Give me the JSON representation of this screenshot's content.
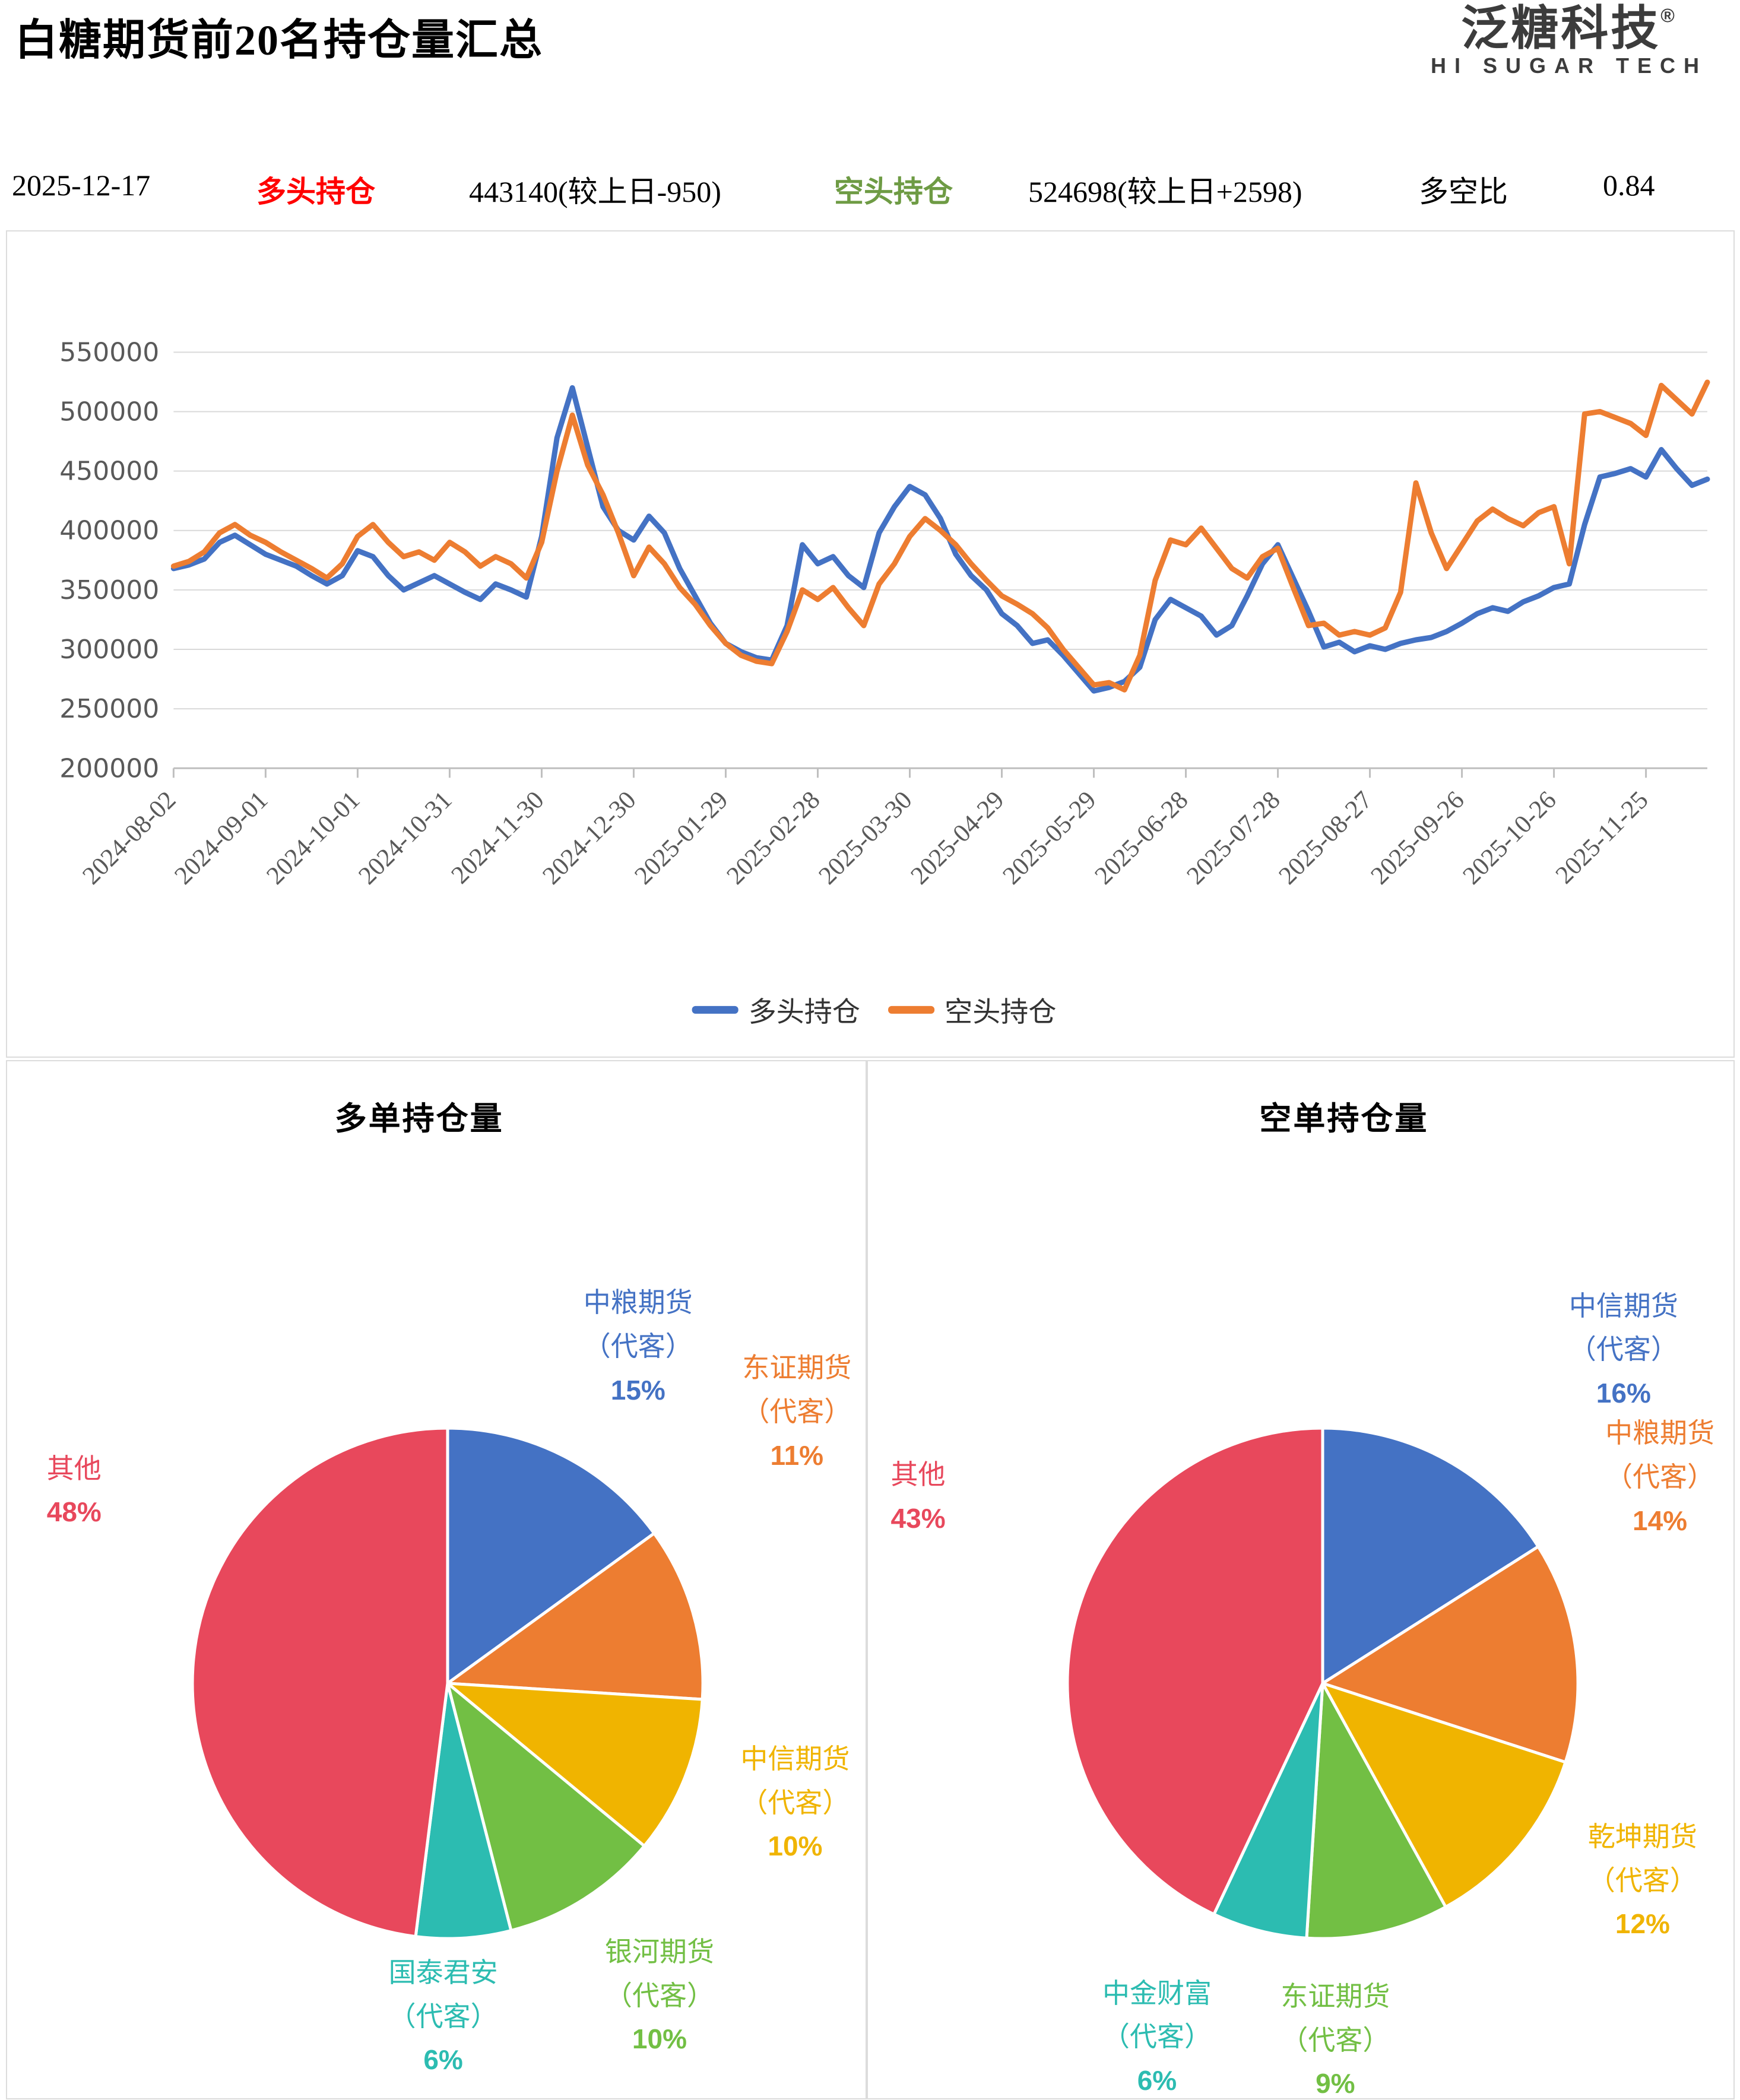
{
  "header": {
    "title": "白糖期货前20名持仓量汇总",
    "logo": {
      "name": "泛糖科技",
      "reg_mark": "®",
      "subtitle": "HI SUGAR TECH"
    }
  },
  "summary_bar": {
    "date": "2025-12-17",
    "long_label": "多头持仓",
    "long_label_color": "#FF0000",
    "long_value": "443140(较上日-950)",
    "short_label": "空头持仓",
    "short_label_color": "#6E9B44",
    "short_value": "524698(较上日+2598)",
    "ratio_label": "多空比",
    "ratio_value": "0.84"
  },
  "chart_data": [
    {
      "type": "line",
      "title": "",
      "ylim": [
        200000,
        550000
      ],
      "y_ticks": [
        200000,
        250000,
        300000,
        350000,
        400000,
        450000,
        500000,
        550000
      ],
      "grid": true,
      "legend_position": "bottom",
      "x_label_interval_days": 30,
      "span_days": 500,
      "x_labels": [
        "2024-08-02",
        "2024-09-01",
        "2024-10-01",
        "2024-10-31",
        "2024-11-30",
        "2024-12-30",
        "2025-01-29",
        "2025-02-28",
        "2025-03-30",
        "2025-04-29",
        "2025-05-29",
        "2025-06-28",
        "2025-07-28",
        "2025-08-27",
        "2025-09-26",
        "2025-10-26",
        "2025-11-25"
      ],
      "series": [
        {
          "name": "多头持仓",
          "color": "#4472C4",
          "values": [
            368000,
            371000,
            376000,
            390000,
            396000,
            388000,
            380000,
            375000,
            370000,
            362000,
            355000,
            362000,
            383000,
            378000,
            362000,
            350000,
            356000,
            362000,
            355000,
            348000,
            342000,
            355000,
            350000,
            344000,
            395000,
            478000,
            520000,
            470000,
            420000,
            400000,
            392000,
            412000,
            398000,
            368000,
            345000,
            322000,
            305000,
            298000,
            293000,
            291000,
            320000,
            388000,
            372000,
            378000,
            362000,
            352000,
            398000,
            420000,
            437000,
            430000,
            410000,
            380000,
            362000,
            350000,
            330000,
            320000,
            305000,
            308000,
            295000,
            280000,
            265000,
            268000,
            273000,
            285000,
            325000,
            342000,
            335000,
            328000,
            312000,
            320000,
            345000,
            372000,
            388000,
            360000,
            332000,
            302000,
            306000,
            298000,
            303000,
            300000,
            305000,
            308000,
            310000,
            315000,
            322000,
            330000,
            335000,
            332000,
            340000,
            345000,
            352000,
            355000,
            405000,
            445000,
            448000,
            452000,
            445000,
            468000,
            452000,
            438000,
            443140
          ]
        },
        {
          "name": "空头持仓",
          "color": "#ED7D31",
          "values": [
            370000,
            374000,
            382000,
            398000,
            405000,
            396000,
            390000,
            382000,
            375000,
            368000,
            360000,
            372000,
            395000,
            405000,
            390000,
            378000,
            382000,
            375000,
            390000,
            382000,
            370000,
            378000,
            372000,
            360000,
            390000,
            450000,
            497000,
            455000,
            430000,
            398000,
            362000,
            386000,
            372000,
            352000,
            338000,
            320000,
            305000,
            295000,
            290000,
            288000,
            315000,
            350000,
            342000,
            352000,
            335000,
            320000,
            355000,
            372000,
            395000,
            410000,
            400000,
            388000,
            372000,
            358000,
            345000,
            338000,
            330000,
            318000,
            300000,
            285000,
            270000,
            272000,
            266000,
            295000,
            358000,
            392000,
            388000,
            402000,
            385000,
            368000,
            360000,
            378000,
            385000,
            352000,
            320000,
            322000,
            312000,
            315000,
            312000,
            318000,
            348000,
            440000,
            398000,
            368000,
            388000,
            408000,
            418000,
            410000,
            404000,
            415000,
            420000,
            372000,
            498000,
            500000,
            495000,
            490000,
            480000,
            522000,
            510000,
            498000,
            524698
          ]
        }
      ]
    },
    {
      "type": "pie",
      "title": "多单持仓量",
      "slices": [
        {
          "label": "中粮期货",
          "sublabel": "（代客）",
          "pct": 15,
          "color": "#4472C4",
          "label_pos": {
            "x": 73.5,
            "y": 21.2
          }
        },
        {
          "label": "东证期货",
          "sublabel": "（代客）",
          "pct": 11,
          "color": "#ED7D31",
          "label_pos": {
            "x": 92.0,
            "y": 27.5
          }
        },
        {
          "label": "中信期货",
          "sublabel": "（代客）",
          "pct": 10,
          "color": "#F0B400",
          "label_pos": {
            "x": 91.8,
            "y": 65.2
          }
        },
        {
          "label": "银河期货",
          "sublabel": "（代客）",
          "pct": 10,
          "color": "#72BF44",
          "label_pos": {
            "x": 76.0,
            "y": 83.8
          }
        },
        {
          "label": "国泰君安",
          "sublabel": "（代客）",
          "pct": 6,
          "color": "#2CBCB1",
          "label_pos": {
            "x": 50.8,
            "y": 85.8
          }
        },
        {
          "label": "其他",
          "sublabel": "",
          "pct": 48,
          "color": "#E8485C",
          "label_pos": {
            "x": 7.8,
            "y": 37.2
          }
        }
      ]
    },
    {
      "type": "pie",
      "title": "空单持仓量",
      "slices": [
        {
          "label": "中信期货",
          "sublabel": "（代客）",
          "pct": 16,
          "color": "#4472C4",
          "label_pos": {
            "x": 87.3,
            "y": 21.5
          }
        },
        {
          "label": "中粮期货",
          "sublabel": "（代客）",
          "pct": 14,
          "color": "#ED7D31",
          "label_pos": {
            "x": 91.5,
            "y": 33.8
          }
        },
        {
          "label": "乾坤期货",
          "sublabel": "（代客）",
          "pct": 12,
          "color": "#F0B400",
          "label_pos": {
            "x": 89.5,
            "y": 72.7
          }
        },
        {
          "label": "东证期货",
          "sublabel": "（代客）",
          "pct": 9,
          "color": "#72BF44",
          "label_pos": {
            "x": 54.0,
            "y": 88.1
          }
        },
        {
          "label": "中金财富",
          "sublabel": "（代客）",
          "pct": 6,
          "color": "#2CBCB1",
          "label_pos": {
            "x": 33.4,
            "y": 87.8
          }
        },
        {
          "label": "其他",
          "sublabel": "",
          "pct": 43,
          "color": "#E8485C",
          "label_pos": {
            "x": 5.8,
            "y": 37.8
          }
        }
      ]
    }
  ]
}
